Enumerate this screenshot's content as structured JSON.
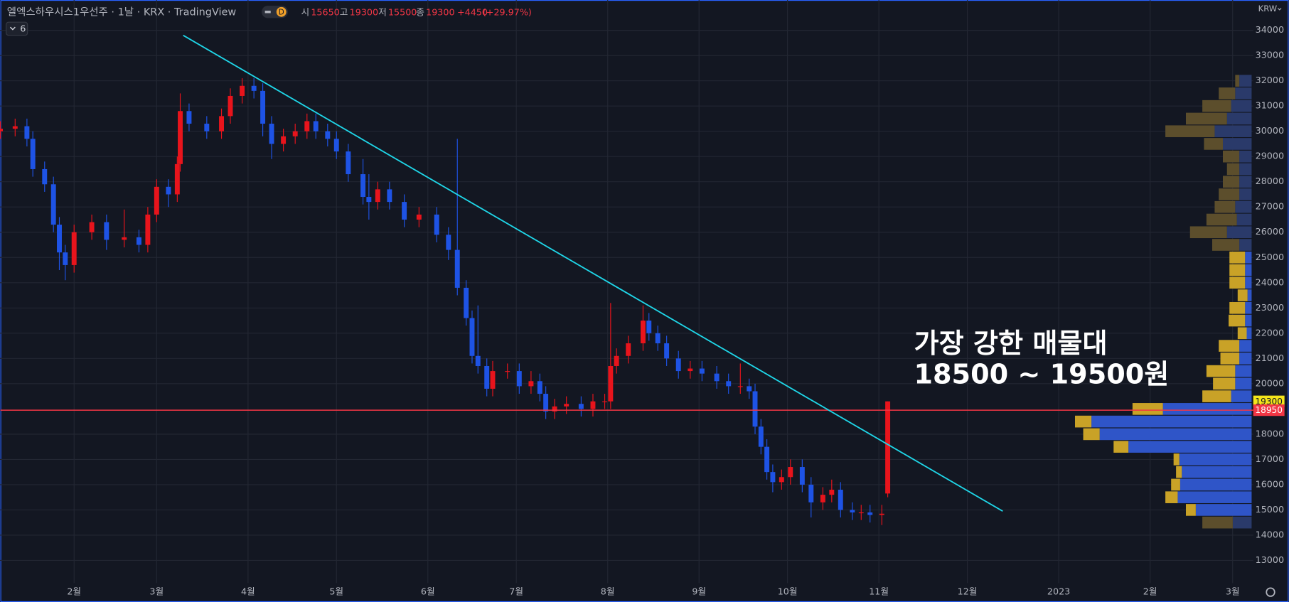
{
  "chart_data": {
    "type": "candlestick",
    "title": "엘엑스하우시스1우선주 · 1날 · KRX · TradingView",
    "interval_badge": "D",
    "indicator_count": "6",
    "currency": "KRW",
    "ohlc_header": {
      "labels": [
        "시",
        "고",
        "저",
        "종"
      ],
      "values": [
        15650,
        19300,
        15500,
        19300
      ],
      "change": "+4450",
      "change_pct": "(+29.97%)"
    },
    "annotation": [
      "가장 강한 매물대",
      "18500 ~ 19500원"
    ],
    "up_color": "#e8141c",
    "down_color": "#1e53e5",
    "xlim": [
      6,
      431
    ],
    "ylim": [
      12100,
      35200
    ],
    "xticks": [
      {
        "value": 31,
        "label": "2월"
      },
      {
        "value": 59,
        "label": "3월"
      },
      {
        "value": 90,
        "label": "4월"
      },
      {
        "value": 120,
        "label": "5월"
      },
      {
        "value": 151,
        "label": "6월"
      },
      {
        "value": 181,
        "label": "7월"
      },
      {
        "value": 212,
        "label": "8월"
      },
      {
        "value": 243,
        "label": "9월"
      },
      {
        "value": 273,
        "label": "10월"
      },
      {
        "value": 304,
        "label": "11월"
      },
      {
        "value": 334,
        "label": "12월"
      },
      {
        "value": 365,
        "label": "2023"
      },
      {
        "value": 396,
        "label": "2월"
      },
      {
        "value": 424,
        "label": "3월"
      }
    ],
    "yticks": [
      13000,
      14000,
      15000,
      16000,
      17000,
      18000,
      20000,
      21000,
      22000,
      23000,
      24000,
      25000,
      26000,
      27000,
      28000,
      29000,
      30000,
      31000,
      32000,
      33000,
      34000
    ],
    "grid": true,
    "candles": {
      "x": [
        6,
        11,
        15,
        17,
        21,
        24,
        26,
        28,
        31,
        37,
        42,
        48,
        53,
        56,
        59,
        63,
        66,
        67,
        70,
        76,
        81,
        84,
        88,
        92,
        95,
        98,
        102,
        106,
        110,
        113,
        117,
        120,
        124,
        129,
        131,
        134,
        138,
        143,
        148,
        154,
        158,
        161,
        164,
        166,
        168,
        171,
        173,
        178,
        182,
        186,
        189,
        191,
        194,
        198,
        203,
        207,
        211,
        213,
        215,
        219,
        224,
        226,
        229,
        232,
        236,
        240,
        244,
        249,
        253,
        257,
        260,
        262,
        264,
        266,
        268,
        271,
        274,
        278,
        281,
        285,
        288,
        291,
        295,
        298,
        301,
        305,
        307
      ],
      "open": [
        30000,
        30100,
        30200,
        29700,
        28500,
        27900,
        26300,
        25200,
        24700,
        26000,
        26400,
        25700,
        25800,
        25500,
        26700,
        27800,
        27500,
        28700,
        30800,
        30300,
        30000,
        30600,
        31400,
        31800,
        31600,
        30300,
        29500,
        29800,
        30000,
        30400,
        30000,
        29700,
        29200,
        28300,
        27400,
        27200,
        27700,
        27200,
        26500,
        26700,
        25900,
        25300,
        23800,
        22600,
        21100,
        20700,
        19800,
        20500,
        20500,
        19900,
        20100,
        19600,
        18900,
        19100,
        19200,
        19000,
        19300,
        19300,
        20700,
        21100,
        21600,
        22500,
        22000,
        21600,
        21000,
        20500,
        20600,
        20400,
        20100,
        19900,
        19900,
        19700,
        18300,
        17500,
        16500,
        16100,
        16300,
        16700,
        16000,
        15300,
        15600,
        15800,
        15000,
        14900,
        14900,
        14800,
        15650
      ],
      "high": [
        30400,
        30500,
        30500,
        30000,
        28800,
        28200,
        26600,
        25500,
        26300,
        26700,
        26700,
        26900,
        26100,
        27000,
        28100,
        28100,
        29000,
        31500,
        31100,
        30600,
        30900,
        31700,
        32100,
        32100,
        31900,
        30600,
        30100,
        30300,
        30700,
        30700,
        30300,
        30000,
        29500,
        28900,
        28300,
        28000,
        28000,
        27500,
        27000,
        27000,
        26200,
        29700,
        24100,
        22900,
        23100,
        21000,
        20900,
        20800,
        20800,
        20500,
        20400,
        19900,
        19400,
        19500,
        19500,
        19600,
        19600,
        23200,
        21400,
        21900,
        23100,
        22800,
        22300,
        21900,
        21300,
        20900,
        20900,
        20700,
        20400,
        20800,
        20200,
        20000,
        18600,
        17800,
        16800,
        16600,
        17000,
        17000,
        16300,
        15900,
        16200,
        16100,
        15300,
        15200,
        15200,
        15200,
        19300
      ],
      "low": [
        29700,
        29800,
        29400,
        28200,
        27600,
        26000,
        24500,
        24100,
        24400,
        25700,
        25300,
        25400,
        25200,
        25200,
        26400,
        27000,
        27200,
        28400,
        30000,
        29700,
        29700,
        30300,
        31100,
        31300,
        29800,
        28900,
        29200,
        29500,
        29700,
        29700,
        29400,
        28900,
        28000,
        27100,
        26500,
        26900,
        26900,
        26200,
        26200,
        25600,
        24900,
        23500,
        22300,
        20800,
        20400,
        19500,
        19500,
        20200,
        19600,
        19600,
        19300,
        18600,
        18600,
        18800,
        18700,
        18700,
        19000,
        19000,
        20400,
        20800,
        21300,
        21700,
        21300,
        20700,
        20200,
        20200,
        20100,
        19800,
        19600,
        19600,
        19400,
        18000,
        17200,
        16200,
        15700,
        15800,
        16000,
        15700,
        14700,
        15000,
        15300,
        14700,
        14600,
        14600,
        14500,
        14400,
        15500
      ],
      "close": [
        30100,
        30200,
        29700,
        28500,
        27900,
        26300,
        25200,
        24700,
        26000,
        26400,
        25700,
        25800,
        25500,
        26700,
        27800,
        27500,
        28700,
        30800,
        30300,
        30000,
        30600,
        31400,
        31800,
        31600,
        30300,
        29500,
        29800,
        30000,
        30400,
        30000,
        29700,
        29200,
        28300,
        27400,
        27200,
        27700,
        27200,
        26500,
        26700,
        25900,
        25300,
        23800,
        22600,
        21100,
        20700,
        19800,
        20500,
        20500,
        19900,
        20100,
        19600,
        18900,
        19100,
        19200,
        19000,
        19300,
        19300,
        20700,
        21100,
        21600,
        22500,
        22000,
        21600,
        21000,
        20500,
        20600,
        20400,
        20100,
        19900,
        19900,
        19700,
        18300,
        17500,
        16500,
        16100,
        16300,
        16700,
        16000,
        15300,
        15600,
        15800,
        15000,
        14900,
        14900,
        14800,
        14850,
        19300
      ]
    },
    "trendline": {
      "x": [
        68,
        346
      ],
      "y": [
        33800,
        14950
      ],
      "color": "#1fd6e8"
    },
    "horizontal_line": {
      "value": 18950,
      "color": "#f23645"
    },
    "price_labels": [
      {
        "value": 19300,
        "color": "#f5e51b",
        "text_color": "#131722"
      },
      {
        "value": 18950,
        "color": "#f23645",
        "text_color": "#ffffff"
      }
    ],
    "volume_profile": {
      "step": 500,
      "value_area": [
        14750,
        25250
      ],
      "price": [
        32000,
        31500,
        31000,
        30500,
        30000,
        29500,
        29000,
        28500,
        28000,
        27500,
        27000,
        26500,
        26000,
        25500,
        25000,
        24500,
        24000,
        23500,
        23000,
        22500,
        22000,
        21500,
        21000,
        20500,
        20000,
        19500,
        19000,
        18500,
        18000,
        17500,
        17000,
        16500,
        16000,
        15500,
        15000,
        14500
      ],
      "up": [
        15,
        20,
        25,
        30,
        45,
        35,
        15,
        15,
        15,
        15,
        20,
        18,
        30,
        15,
        8,
        8,
        8,
        5,
        8,
        8,
        6,
        15,
        15,
        20,
        20,
        25,
        108,
        195,
        185,
        150,
        88,
        85,
        87,
        90,
        68,
        23
      ],
      "down": [
        5,
        20,
        35,
        50,
        60,
        23,
        20,
        15,
        20,
        25,
        25,
        37,
        45,
        33,
        19,
        19,
        19,
        12,
        19,
        20,
        11,
        25,
        23,
        35,
        27,
        35,
        37,
        20,
        20,
        18,
        7,
        7,
        11,
        15,
        12,
        37
      ],
      "up_color": "#2f55c8",
      "down_color": "#c9a227",
      "muted_up_color": "#2a3a6a",
      "muted_down_color": "#5c4e2c"
    }
  }
}
